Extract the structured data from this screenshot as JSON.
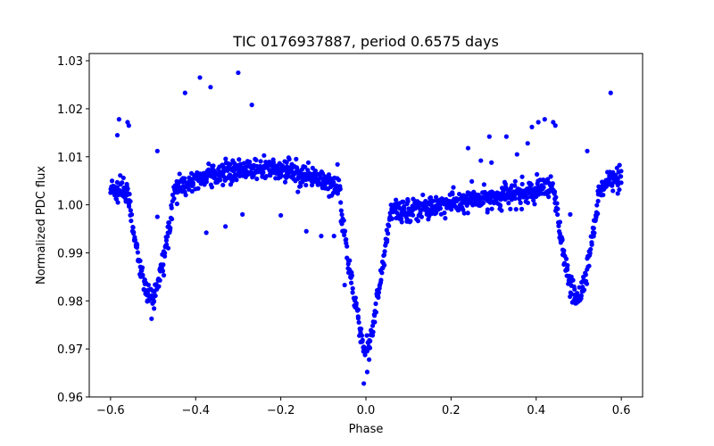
{
  "chart_data": {
    "type": "scatter",
    "title": "TIC 0176937887, period 0.6575 days",
    "xlabel": "Phase",
    "ylabel": "Normalized PDC flux",
    "xlim": [
      -0.65,
      0.65
    ],
    "ylim": [
      0.96,
      1.0315
    ],
    "xticks": [
      -0.6,
      -0.4,
      -0.2,
      0.0,
      0.2,
      0.4,
      0.6
    ],
    "xtick_labels": [
      "−0.6",
      "−0.4",
      "−0.2",
      "0.0",
      "0.2",
      "0.4",
      "0.6"
    ],
    "yticks": [
      0.96,
      0.97,
      0.98,
      0.99,
      1.0,
      1.01,
      1.02,
      1.03
    ],
    "ytick_labels": [
      "0.96",
      "0.97",
      "0.98",
      "0.99",
      "1.00",
      "1.01",
      "1.02",
      "1.03"
    ],
    "grid": false,
    "marker_color": "#0000ff",
    "outliers": [
      [
        -0.58,
        1.0178
      ],
      [
        -0.584,
        1.0145
      ],
      [
        -0.56,
        1.0172
      ],
      [
        -0.557,
        1.0165
      ],
      [
        -0.49,
        1.0112
      ],
      [
        -0.425,
        1.0233
      ],
      [
        -0.39,
        1.0265
      ],
      [
        -0.365,
        1.0245
      ],
      [
        -0.3,
        1.0275
      ],
      [
        -0.268,
        1.0208
      ],
      [
        -0.49,
        0.9975
      ],
      [
        -0.375,
        0.9942
      ],
      [
        -0.33,
        0.9955
      ],
      [
        -0.29,
        0.998
      ],
      [
        -0.2,
        0.9978
      ],
      [
        -0.14,
        0.9945
      ],
      [
        -0.105,
        0.9935
      ],
      [
        -0.075,
        0.9935
      ],
      [
        -0.05,
        0.9833
      ],
      [
        -0.005,
        0.9628
      ],
      [
        0.003,
        0.9652
      ],
      [
        0.24,
        1.0118
      ],
      [
        0.27,
        1.0092
      ],
      [
        0.295,
        1.0088
      ],
      [
        0.29,
        1.0142
      ],
      [
        0.33,
        1.0142
      ],
      [
        0.355,
        1.0105
      ],
      [
        0.38,
        1.0128
      ],
      [
        0.39,
        1.0162
      ],
      [
        0.405,
        1.0172
      ],
      [
        0.42,
        1.0178
      ],
      [
        0.44,
        1.0172
      ],
      [
        0.445,
        1.0165
      ],
      [
        0.52,
        1.0112
      ],
      [
        0.575,
        1.0233
      ],
      [
        0.48,
        0.998
      ],
      [
        0.54,
        0.9978
      ]
    ]
  }
}
